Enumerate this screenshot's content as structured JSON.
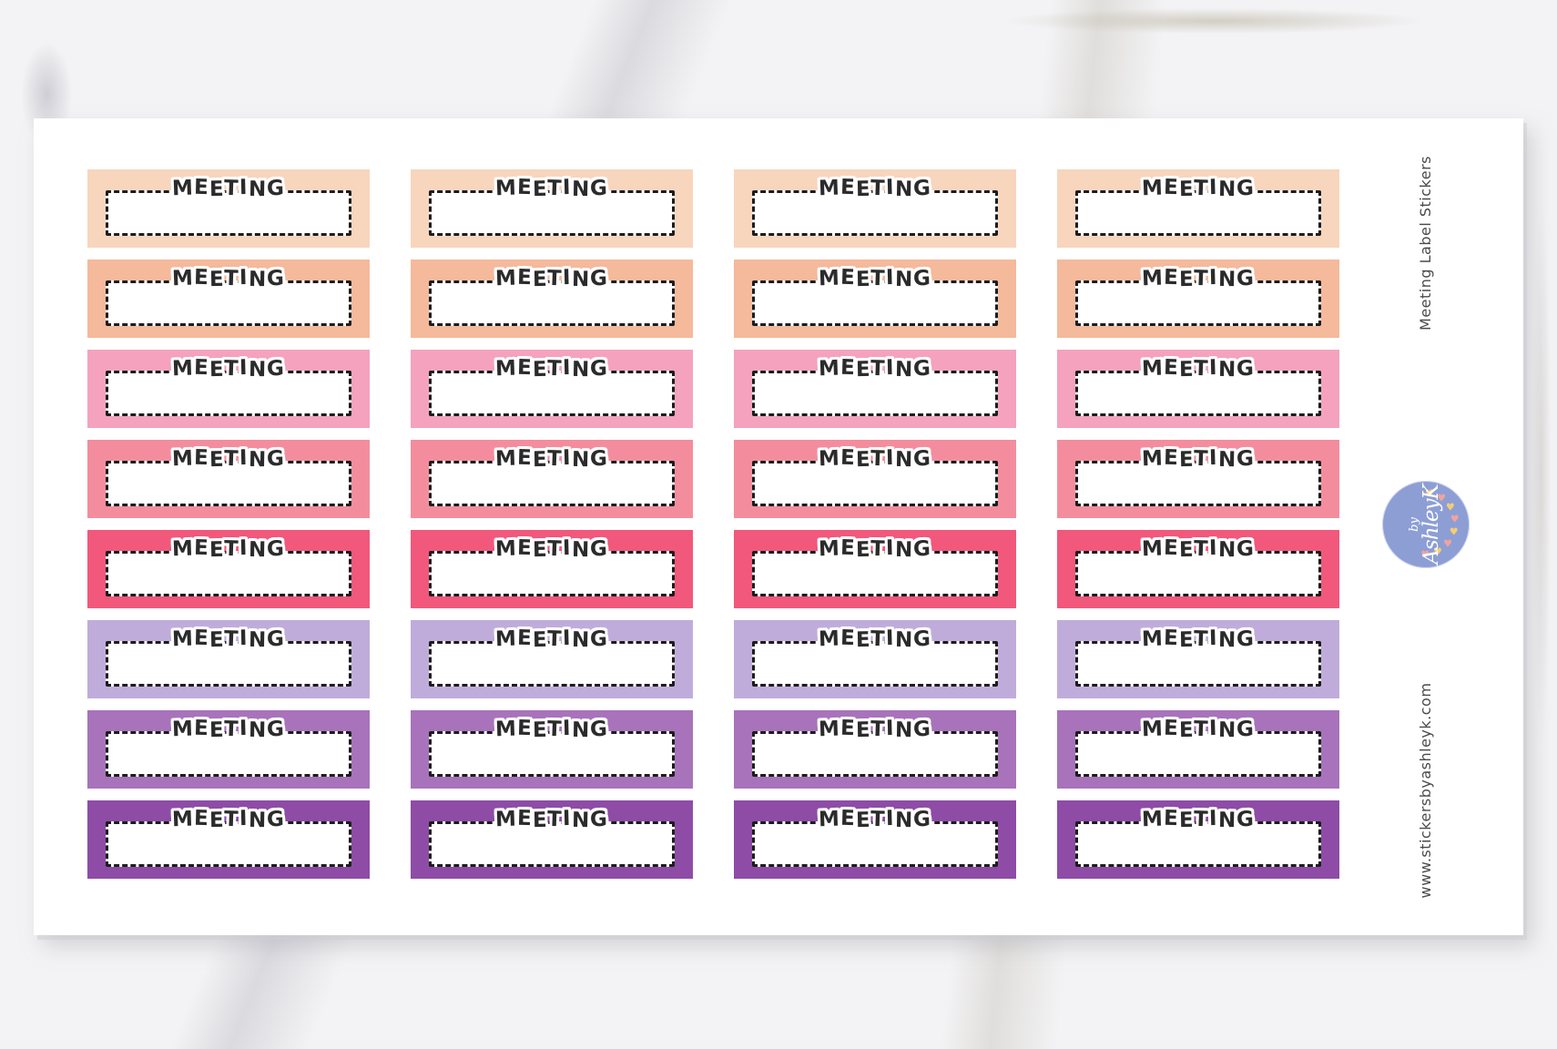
{
  "product": {
    "side_title": "Meeting Label Stickers",
    "side_url": "www.stickersbyashleyk.com"
  },
  "sticker": {
    "label": "MEETING",
    "label_color": "#2b2b2b",
    "dash_color": "#1c1c1c",
    "box_color": "#ffffff"
  },
  "sheet": {
    "background": "#ffffff",
    "columns": 4,
    "rows": [
      {
        "name": "peach",
        "color": "#f8d5bd"
      },
      {
        "name": "salmon",
        "color": "#f5b99c"
      },
      {
        "name": "pink",
        "color": "#f4a2bd"
      },
      {
        "name": "rose",
        "color": "#f38d9d"
      },
      {
        "name": "raspberry",
        "color": "#f1587b"
      },
      {
        "name": "lavender",
        "color": "#c0acdb"
      },
      {
        "name": "orchid",
        "color": "#a873ba"
      },
      {
        "name": "purple",
        "color": "#8e4ca6"
      }
    ]
  },
  "logo": {
    "line1": "by",
    "line2": "AshleyK",
    "circle_color": "#8d9ed5",
    "text_color": "#ffffff",
    "heart_colors": [
      "#f6cd75",
      "#efa49d"
    ]
  },
  "background": {
    "marble_base": "#f3f3f5"
  }
}
